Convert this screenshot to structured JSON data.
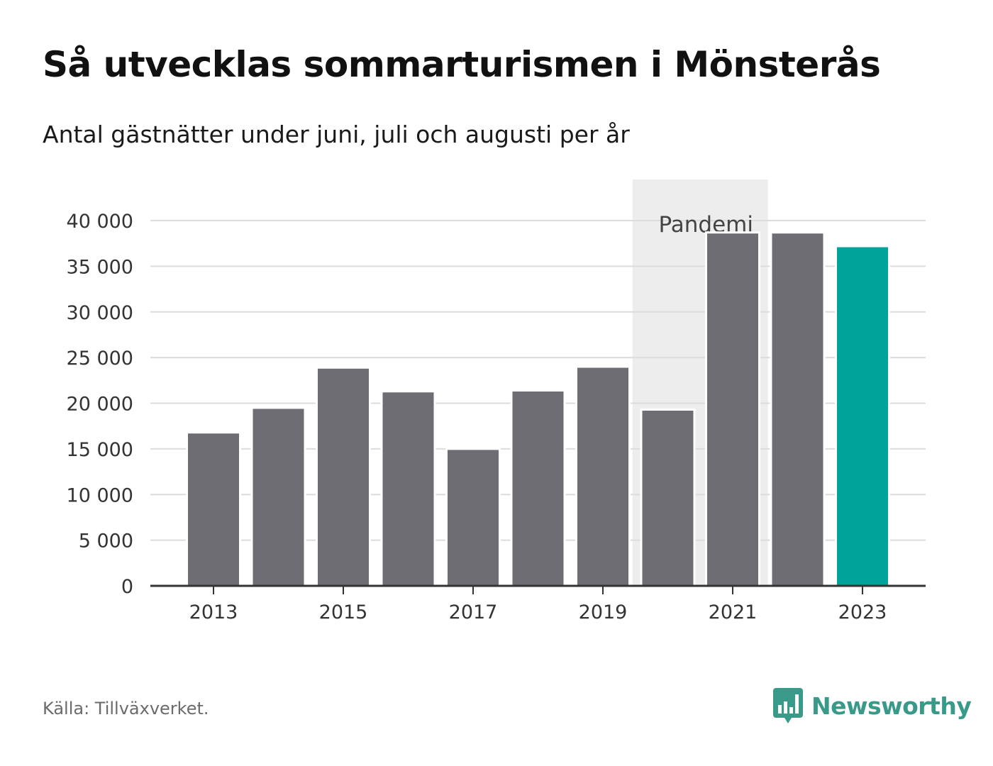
{
  "title": "Så utvecklas sommarturismen i Mönsterås",
  "subtitle": "Antal gästnätter under juni, juli och augusti per år",
  "source": "Källa: Tillväxverket.",
  "brand": {
    "name": "Newsworthy",
    "icon": "bar-chart-speech-bubble-icon"
  },
  "colors": {
    "bar": "#6e6d73",
    "highlight": "#00a39a",
    "band": "#ededed",
    "grid": "#dcdcdc",
    "axis": "#333333"
  },
  "chart_data": {
    "type": "bar",
    "categories": [
      "2013",
      "2014",
      "2015",
      "2016",
      "2017",
      "2018",
      "2019",
      "2020",
      "2021",
      "2022",
      "2023"
    ],
    "values": [
      16800,
      19500,
      23900,
      21300,
      15000,
      21400,
      24000,
      19300,
      38700,
      38700,
      37200
    ],
    "highlight_category": "2023",
    "x_tick_labels": [
      "2013",
      "2015",
      "2017",
      "2019",
      "2021",
      "2023"
    ],
    "y_tick_values": [
      0,
      5000,
      10000,
      15000,
      20000,
      25000,
      30000,
      35000,
      40000
    ],
    "y_tick_labels": [
      "0",
      "5 000",
      "10 000",
      "15 000",
      "20 000",
      "25 000",
      "30 000",
      "35 000",
      "40 000"
    ],
    "ylim": [
      0,
      40000
    ],
    "grid": true,
    "annotations": [
      {
        "label": "Pandemi",
        "from": "2020",
        "to": "2021"
      }
    ]
  }
}
